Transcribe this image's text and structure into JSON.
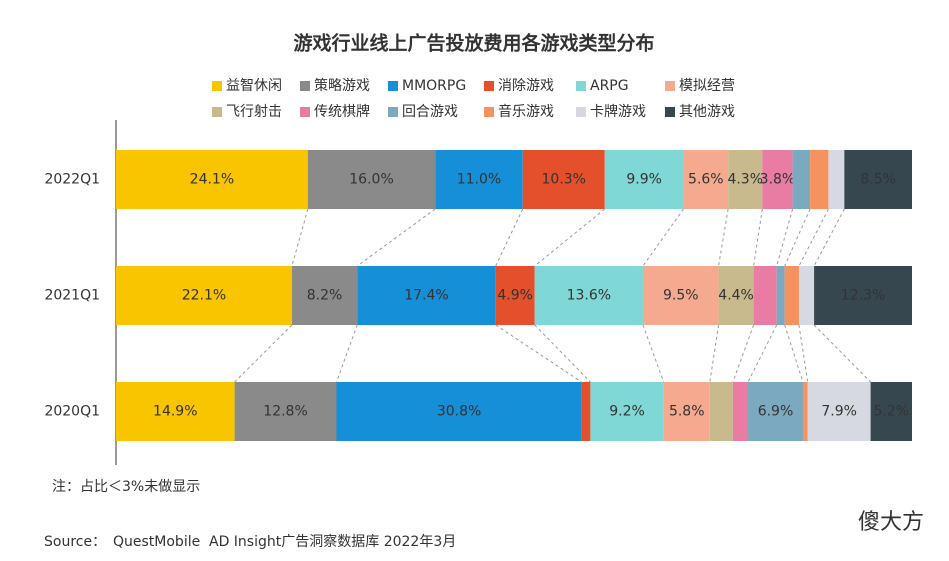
{
  "chart_data": {
    "type": "stacked-bar-horizontal",
    "title": "游戏行业线上广告投放费用各游戏类型分布",
    "categories": [
      "2022Q1",
      "2021Q1",
      "2020Q1"
    ],
    "series": [
      {
        "name": "益智休闲",
        "color": "#f8c500",
        "values": [
          24.1,
          22.1,
          14.9
        ],
        "value_labels": [
          "24.1%",
          "22.1%",
          "14.9%"
        ]
      },
      {
        "name": "策略游戏",
        "color": "#8a8a8a",
        "values": [
          16.0,
          8.2,
          12.8
        ],
        "value_labels": [
          "16.0%",
          "8.2%",
          "12.8%"
        ]
      },
      {
        "name": "MMORPG",
        "color": "#1590d8",
        "values": [
          11.0,
          17.4,
          30.8
        ],
        "value_labels": [
          "11.0%",
          "17.4%",
          "30.8%"
        ]
      },
      {
        "name": "消除游戏",
        "color": "#e4502b",
        "values": [
          10.3,
          4.9,
          1.1
        ],
        "value_labels": [
          "10.3%",
          "4.9%",
          null
        ]
      },
      {
        "name": "ARPG",
        "color": "#7fd8d5",
        "values": [
          9.9,
          13.6,
          9.2
        ],
        "value_labels": [
          "9.9%",
          "13.6%",
          "9.2%"
        ]
      },
      {
        "name": "模拟经营",
        "color": "#f5aa90",
        "values": [
          5.6,
          9.5,
          5.8
        ],
        "value_labels": [
          "5.6%",
          "9.5%",
          "5.8%"
        ]
      },
      {
        "name": "飞行射击",
        "color": "#c8ba8c",
        "values": [
          4.3,
          4.4,
          2.9
        ],
        "value_labels": [
          "4.3%",
          "4.4%",
          null
        ]
      },
      {
        "name": "传统棋牌",
        "color": "#e97ca2",
        "values": [
          3.8,
          2.9,
          1.9
        ],
        "value_labels": [
          "3.8%",
          null,
          null
        ]
      },
      {
        "name": "回合游戏",
        "color": "#7ba9c0",
        "values": [
          2.2,
          1.0,
          6.9
        ],
        "value_labels": [
          null,
          null,
          "6.9%"
        ]
      },
      {
        "name": "音乐游戏",
        "color": "#f6925d",
        "values": [
          2.3,
          1.8,
          0.6
        ],
        "value_labels": [
          null,
          null,
          null
        ]
      },
      {
        "name": "卡牌游戏",
        "color": "#d6d9e2",
        "values": [
          2.0,
          1.9,
          7.9
        ],
        "value_labels": [
          null,
          null,
          "7.9%"
        ]
      },
      {
        "name": "其他游戏",
        "color": "#36474f",
        "values": [
          8.5,
          12.3,
          5.2
        ],
        "value_labels": [
          "8.5%",
          "12.3%",
          "5.2%"
        ]
      }
    ],
    "note": "注：占比＜3%未做显示",
    "source": {
      "label": "Source：",
      "brand": "QuestMobile",
      "text": "AD Insight广告洞察数据库 2022年3月"
    },
    "logo": {
      "red": "傻",
      "black": "大方"
    }
  }
}
